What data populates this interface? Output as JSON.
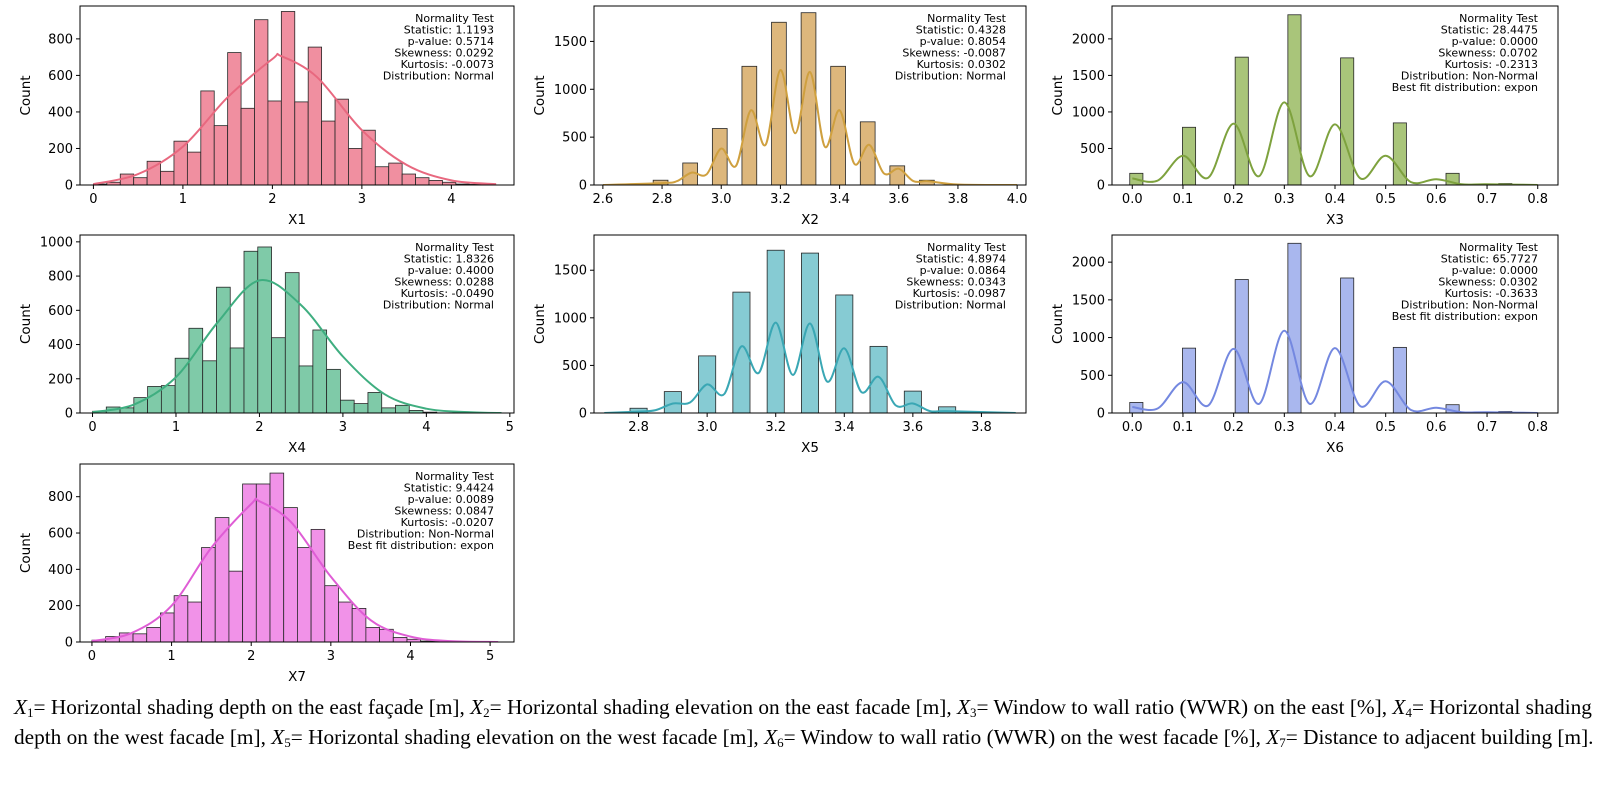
{
  "chart_data": [
    {
      "type": "histogram",
      "variable": "X1",
      "xlabel": "X1",
      "ylabel": "Count",
      "color": "#f08fa0",
      "kde_color": "#e8687f",
      "xlim": [
        -0.15,
        4.7
      ],
      "ylim": [
        0,
        980
      ],
      "xticks": [
        "0",
        "1",
        "2",
        "3",
        "4"
      ],
      "xtick_values": [
        0,
        1,
        2,
        3,
        4
      ],
      "yticks": [
        "0",
        "200",
        "400",
        "600",
        "800"
      ],
      "ytick_values": [
        0,
        200,
        400,
        600,
        800
      ],
      "bin_start": 0.0,
      "bin_width": 0.15,
      "counts": [
        5,
        15,
        60,
        40,
        130,
        75,
        240,
        180,
        515,
        325,
        725,
        420,
        905,
        460,
        950,
        455,
        755,
        350,
        470,
        200,
        300,
        100,
        120,
        60,
        40,
        25,
        15,
        5,
        3,
        1
      ],
      "kde": {
        "x": [
          0,
          0.5,
          1.0,
          1.5,
          2.0,
          2.1,
          2.5,
          3.0,
          3.5,
          4.0,
          4.5
        ],
        "y": [
          5,
          60,
          210,
          480,
          690,
          705,
          590,
          300,
          110,
          25,
          5
        ]
      },
      "stats": [
        "Normality Test",
        "Statistic: 1.1193",
        "p-value: 0.5714",
        "Skewness: 0.0292",
        "Kurtosis: -0.0073",
        "Distribution: Normal"
      ]
    },
    {
      "type": "histogram",
      "variable": "X2",
      "xlabel": "X2",
      "ylabel": "Count",
      "color": "#ddb77c",
      "kde_color": "#cfa03f",
      "xlim": [
        2.57,
        4.03
      ],
      "ylim": [
        0,
        1870
      ],
      "xticks": [
        "2.6",
        "2.8",
        "3.0",
        "3.2",
        "3.4",
        "3.6",
        "3.8",
        "4.0"
      ],
      "xtick_values": [
        2.6,
        2.8,
        3.0,
        3.2,
        3.4,
        3.6,
        3.8,
        4.0
      ],
      "yticks": [
        "0",
        "500",
        "1000",
        "1500"
      ],
      "ytick_values": [
        0,
        500,
        1000,
        1500
      ],
      "bin_start": 2.77,
      "bin_width": 0.05,
      "counts": [
        50,
        0,
        230,
        0,
        590,
        0,
        1240,
        0,
        1700,
        0,
        1800,
        0,
        1240,
        0,
        660,
        0,
        200,
        0,
        50
      ],
      "kde": {
        "x": [
          2.6,
          2.8,
          2.85,
          2.9,
          2.95,
          3.0,
          3.05,
          3.1,
          3.15,
          3.2,
          3.25,
          3.3,
          3.35,
          3.4,
          3.45,
          3.5,
          3.55,
          3.6,
          3.65,
          3.7,
          3.8,
          4.0
        ],
        "y": [
          0,
          20,
          40,
          130,
          110,
          380,
          200,
          780,
          420,
          1200,
          540,
          1180,
          400,
          780,
          220,
          420,
          120,
          170,
          40,
          40,
          5,
          0
        ]
      },
      "stats": [
        "Normality Test",
        "Statistic: 0.4328",
        "p-value: 0.8054",
        "Skewness: -0.0087",
        "Kurtosis: 0.0302",
        "Distribution: Normal"
      ]
    },
    {
      "type": "histogram",
      "variable": "X3",
      "xlabel": "X3",
      "ylabel": "Count",
      "color": "#a9c57a",
      "kde_color": "#7ea23e",
      "xlim": [
        -0.04,
        0.84
      ],
      "ylim": [
        0,
        2450
      ],
      "xticks": [
        "0.0",
        "0.1",
        "0.2",
        "0.3",
        "0.4",
        "0.5",
        "0.6",
        "0.7",
        "0.8"
      ],
      "xtick_values": [
        0,
        0.1,
        0.2,
        0.3,
        0.4,
        0.5,
        0.6,
        0.7,
        0.8
      ],
      "yticks": [
        "0",
        "500",
        "1000",
        "1500",
        "2000"
      ],
      "ytick_values": [
        0,
        500,
        1000,
        1500,
        2000
      ],
      "bin_start": -0.005,
      "bin_width": 0.026,
      "counts": [
        160,
        0,
        0,
        0,
        790,
        0,
        0,
        0,
        1750,
        0,
        0,
        0,
        2330,
        0,
        0,
        0,
        1740,
        0,
        0,
        0,
        850,
        0,
        0,
        0,
        160,
        0,
        0,
        0,
        20
      ],
      "kde": {
        "x": [
          0,
          0.05,
          0.1,
          0.15,
          0.2,
          0.25,
          0.3,
          0.35,
          0.4,
          0.45,
          0.5,
          0.55,
          0.6,
          0.65,
          0.7,
          0.8
        ],
        "y": [
          90,
          60,
          400,
          100,
          840,
          120,
          1130,
          120,
          830,
          90,
          400,
          40,
          80,
          10,
          10,
          0
        ]
      },
      "stats": [
        "Normality Test",
        "Statistic: 28.4475",
        "p-value: 0.0000",
        "Skewness: 0.0702",
        "Kurtosis: -0.2313",
        "Distribution: Non-Normal",
        "Best fit distribution: expon"
      ]
    },
    {
      "type": "histogram",
      "variable": "X4",
      "xlabel": "X4",
      "ylabel": "Count",
      "color": "#7fcaa8",
      "kde_color": "#3fae80",
      "xlim": [
        -0.15,
        5.05
      ],
      "ylim": [
        0,
        1040
      ],
      "xticks": [
        "0",
        "1",
        "2",
        "3",
        "4",
        "5"
      ],
      "xtick_values": [
        0,
        1,
        2,
        3,
        4,
        5
      ],
      "yticks": [
        "0",
        "200",
        "400",
        "600",
        "800",
        "1000"
      ],
      "ytick_values": [
        0,
        200,
        400,
        600,
        800,
        1000
      ],
      "bin_start": 0.0,
      "bin_width": 0.165,
      "counts": [
        10,
        35,
        30,
        90,
        155,
        160,
        320,
        495,
        305,
        735,
        380,
        945,
        970,
        440,
        820,
        275,
        485,
        255,
        75,
        55,
        120,
        30,
        45,
        15,
        5,
        1,
        0,
        0,
        0,
        0
      ],
      "kde": {
        "x": [
          0,
          0.5,
          1.0,
          1.5,
          2.0,
          2.5,
          3.0,
          3.5,
          4.0,
          4.5,
          4.9
        ],
        "y": [
          5,
          50,
          210,
          530,
          775,
          630,
          330,
          110,
          25,
          5,
          0
        ]
      },
      "stats": [
        "Normality Test",
        "Statistic: 1.8326",
        "p-value: 0.4000",
        "Skewness: 0.0288",
        "Kurtosis: -0.0490",
        "Distribution: Normal"
      ]
    },
    {
      "type": "histogram",
      "variable": "X5",
      "xlabel": "X5",
      "ylabel": "Count",
      "color": "#86cbd3",
      "kde_color": "#3aa7b4",
      "xlim": [
        2.67,
        3.93
      ],
      "ylim": [
        0,
        1870
      ],
      "xticks": [
        "2.8",
        "3.0",
        "3.2",
        "3.4",
        "3.6",
        "3.8"
      ],
      "xtick_values": [
        2.8,
        3.0,
        3.2,
        3.4,
        3.6,
        3.8
      ],
      "yticks": [
        "0",
        "500",
        "1000",
        "1500"
      ],
      "ytick_values": [
        0,
        500,
        1000,
        1500
      ],
      "bin_start": 2.775,
      "bin_width": 0.05,
      "counts": [
        50,
        0,
        225,
        0,
        600,
        0,
        1270,
        0,
        1710,
        0,
        1680,
        0,
        1240,
        0,
        700,
        0,
        230,
        0,
        65
      ],
      "kde": {
        "x": [
          2.7,
          2.8,
          2.85,
          2.9,
          2.95,
          3.0,
          3.05,
          3.1,
          3.15,
          3.2,
          3.25,
          3.3,
          3.35,
          3.4,
          3.45,
          3.5,
          3.55,
          3.6,
          3.65,
          3.7,
          3.9
        ],
        "y": [
          0,
          15,
          30,
          100,
          110,
          300,
          200,
          700,
          420,
          950,
          400,
          940,
          330,
          680,
          220,
          380,
          80,
          100,
          20,
          20,
          0
        ]
      },
      "stats": [
        "Normality Test",
        "Statistic: 4.8974",
        "p-value: 0.0864",
        "Skewness: 0.0343",
        "Kurtosis: -0.0987",
        "Distribution: Normal"
      ]
    },
    {
      "type": "histogram",
      "variable": "X6",
      "xlabel": "X6",
      "ylabel": "Count",
      "color": "#a9b7ee",
      "kde_color": "#7488e0",
      "xlim": [
        -0.04,
        0.84
      ],
      "ylim": [
        0,
        2360
      ],
      "xticks": [
        "0.0",
        "0.1",
        "0.2",
        "0.3",
        "0.4",
        "0.5",
        "0.6",
        "0.7",
        "0.8"
      ],
      "xtick_values": [
        0,
        0.1,
        0.2,
        0.3,
        0.4,
        0.5,
        0.6,
        0.7,
        0.8
      ],
      "yticks": [
        "0",
        "500",
        "1000",
        "1500",
        "2000"
      ],
      "ytick_values": [
        0,
        500,
        1000,
        1500,
        2000
      ],
      "bin_start": -0.005,
      "bin_width": 0.026,
      "counts": [
        140,
        0,
        0,
        0,
        860,
        0,
        0,
        0,
        1770,
        0,
        0,
        0,
        2250,
        0,
        0,
        0,
        1790,
        0,
        0,
        0,
        870,
        0,
        0,
        0,
        110,
        0,
        0,
        0,
        20
      ],
      "kde": {
        "x": [
          0,
          0.05,
          0.1,
          0.15,
          0.2,
          0.25,
          0.3,
          0.35,
          0.4,
          0.45,
          0.5,
          0.55,
          0.6,
          0.65,
          0.7,
          0.8
        ],
        "y": [
          80,
          60,
          410,
          100,
          850,
          120,
          1090,
          120,
          860,
          90,
          420,
          40,
          70,
          10,
          10,
          0
        ]
      },
      "stats": [
        "Normality Test",
        "Statistic: 65.7727",
        "p-value: 0.0000",
        "Skewness: 0.0302",
        "Kurtosis: -0.3633",
        "Distribution: Non-Normal",
        "Best fit distribution: expon"
      ]
    },
    {
      "type": "histogram",
      "variable": "X7",
      "xlabel": "X7",
      "ylabel": "Count",
      "color": "#f192e8",
      "kde_color": "#df5dd5",
      "xlim": [
        -0.15,
        5.3
      ],
      "ylim": [
        0,
        980
      ],
      "xticks": [
        "0",
        "1",
        "2",
        "3",
        "4",
        "5"
      ],
      "xtick_values": [
        0,
        1,
        2,
        3,
        4,
        5
      ],
      "yticks": [
        "0",
        "200",
        "400",
        "600",
        "800"
      ],
      "ytick_values": [
        0,
        200,
        400,
        600,
        800
      ],
      "bin_start": 0.0,
      "bin_width": 0.172,
      "counts": [
        10,
        30,
        50,
        45,
        80,
        160,
        255,
        220,
        520,
        685,
        390,
        870,
        870,
        930,
        740,
        520,
        620,
        310,
        220,
        185,
        80,
        70,
        25,
        15,
        5,
        3,
        1,
        0,
        0,
        0
      ],
      "kde": {
        "x": [
          0,
          0.5,
          1.0,
          1.5,
          2.0,
          2.1,
          2.5,
          3.0,
          3.5,
          4.0,
          4.5,
          5.1
        ],
        "y": [
          5,
          50,
          200,
          520,
          760,
          775,
          660,
          360,
          120,
          30,
          5,
          0
        ]
      },
      "stats": [
        "Normality Test",
        "Statistic: 9.4424",
        "p-value: 0.0089",
        "Skewness: 0.0847",
        "Kurtosis: -0.0207",
        "Distribution: Non-Normal",
        "Best fit distribution: expon"
      ]
    }
  ],
  "caption": [
    {
      "text": "X",
      "italic": true
    },
    {
      "text": "1",
      "sub": true
    },
    {
      "text": "= Horizontal shading depth on the east façade [m], "
    },
    {
      "text": "X",
      "italic": true
    },
    {
      "text": "2",
      "sub": true
    },
    {
      "text": "= Horizontal shading elevation on the east facade [m], "
    },
    {
      "text": "X",
      "italic": true
    },
    {
      "text": "3",
      "sub": true
    },
    {
      "text": "= Window to wall ratio (WWR) on the east [%], "
    },
    {
      "text": "X",
      "italic": true
    },
    {
      "text": "4",
      "sub": true
    },
    {
      "text": "= Horizontal shading depth on the west facade [m], "
    },
    {
      "text": "X",
      "italic": true
    },
    {
      "text": "5",
      "sub": true
    },
    {
      "text": "= Horizontal shading elevation on the west facade [m], "
    },
    {
      "text": "X",
      "italic": true
    },
    {
      "text": "6",
      "sub": true
    },
    {
      "text": "= Window to wall ratio (WWR) on the west facade [%], "
    },
    {
      "text": "X",
      "italic": true
    },
    {
      "text": "7",
      "sub": true
    },
    {
      "text": "= Distance to adjacent building [m]."
    }
  ]
}
